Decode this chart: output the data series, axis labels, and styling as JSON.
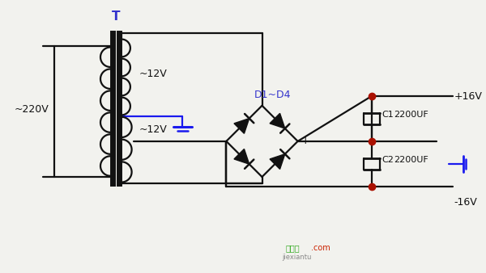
{
  "bg_color": "#f2f2ee",
  "black": "#111111",
  "blue": "#1a1aee",
  "title_blue": "#3333cc",
  "red_dot": "#aa1100",
  "watermark_green": "#33aa22",
  "watermark_red": "#cc2200",
  "watermark_gray": "#888888",
  "transformer_label": "T",
  "v220_label": "~220V",
  "v12_top_label": "~12V",
  "v12_bot_label": "~12V",
  "d1d4_label": "D1~D4",
  "plus16_label": "+16V",
  "minus16_label": "-16V",
  "c1_label": "C1",
  "c2_label": "C2",
  "uf1_label": "2200UF",
  "uf2_label": "2200UF",
  "wm1": "接线图",
  "wm2": ".com",
  "wm3": "jiexiantu"
}
